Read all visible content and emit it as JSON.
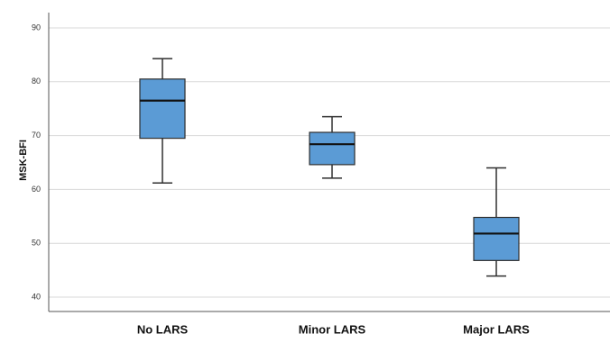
{
  "chart_data": {
    "type": "boxplot",
    "title": "",
    "xlabel": "",
    "ylabel": "MSK-BFI",
    "ylim": [
      38,
      95
    ],
    "yticks": [
      40,
      50,
      60,
      70,
      80,
      90
    ],
    "grid": "horizontal",
    "box_color": "#5b9bd5",
    "box_edge_color": "#2f2f2f",
    "grid_color": "#d9d9d9",
    "categories": [
      "No LARS",
      "Minor LARS",
      "Major LARS"
    ],
    "boxes": [
      {
        "category": "No LARS",
        "whisker_low": 61.2,
        "q1": 69.5,
        "median": 76.5,
        "q3": 80.5,
        "whisker_high": 84.3
      },
      {
        "category": "Minor LARS",
        "whisker_low": 62.1,
        "q1": 64.6,
        "median": 68.4,
        "q3": 70.6,
        "whisker_high": 73.5
      },
      {
        "category": "Major LARS",
        "whisker_low": 43.9,
        "q1": 46.8,
        "median": 51.8,
        "q3": 54.8,
        "whisker_high": 64.0
      }
    ]
  }
}
